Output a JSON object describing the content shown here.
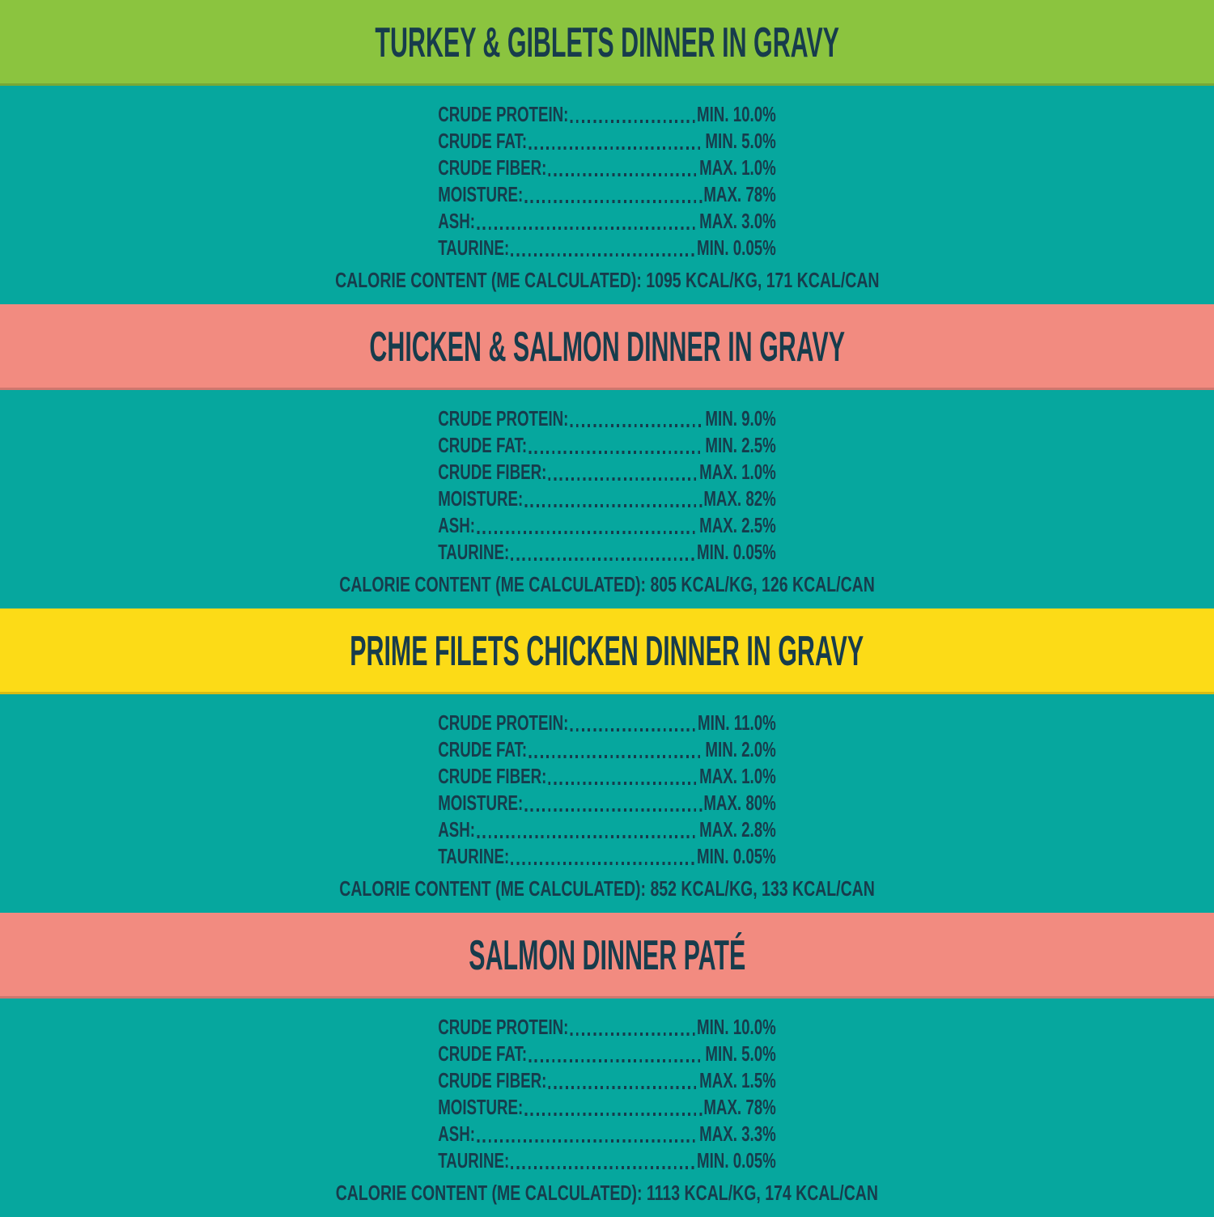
{
  "page": {
    "background_color": "#06a79e",
    "text_color": "#173c4c"
  },
  "sections": [
    {
      "title": "TURKEY & GIBLETS DINNER IN GRAVY",
      "band_color": "#8bc43f",
      "rows": [
        {
          "label": "CRUDE PROTEIN:",
          "value": "MIN. 10.0%"
        },
        {
          "label": "CRUDE FAT:",
          "value": "MIN. 5.0%"
        },
        {
          "label": "CRUDE FIBER:",
          "value": "MAX. 1.0%"
        },
        {
          "label": "MOISTURE:",
          "value": "MAX. 78%"
        },
        {
          "label": "ASH:",
          "value": "MAX. 3.0%"
        },
        {
          "label": "TAURINE:",
          "value": "MIN. 0.05%"
        }
      ],
      "calorie_line": "CALORIE CONTENT (ME CALCULATED): 1095 KCAL/KG, 171 KCAL/CAN"
    },
    {
      "title": "CHICKEN & SALMON DINNER IN GRAVY",
      "band_color": "#f28b80",
      "rows": [
        {
          "label": "CRUDE PROTEIN:",
          "value": "MIN. 9.0%"
        },
        {
          "label": "CRUDE FAT:",
          "value": "MIN. 2.5%"
        },
        {
          "label": "CRUDE FIBER:",
          "value": "MAX. 1.0%"
        },
        {
          "label": "MOISTURE:",
          "value": "MAX. 82%"
        },
        {
          "label": "ASH:",
          "value": "MAX. 2.5%"
        },
        {
          "label": "TAURINE:",
          "value": "MIN. 0.05%"
        }
      ],
      "calorie_line": "CALORIE CONTENT (ME CALCULATED): 805 KCAL/KG, 126 KCAL/CAN"
    },
    {
      "title": "PRIME FILETS CHICKEN DINNER IN GRAVY",
      "band_color": "#fcdb17",
      "rows": [
        {
          "label": "CRUDE PROTEIN:",
          "value": "MIN. 11.0%"
        },
        {
          "label": "CRUDE FAT:",
          "value": "MIN. 2.0%"
        },
        {
          "label": "CRUDE FIBER:",
          "value": "MAX. 1.0%"
        },
        {
          "label": "MOISTURE:",
          "value": "MAX. 80%"
        },
        {
          "label": "ASH:",
          "value": "MAX. 2.8%"
        },
        {
          "label": "TAURINE:",
          "value": "MIN. 0.05%"
        }
      ],
      "calorie_line": "CALORIE CONTENT (ME CALCULATED): 852 KCAL/KG, 133 KCAL/CAN"
    },
    {
      "title": "SALMON DINNER PATÉ",
      "band_color": "#f28b80",
      "rows": [
        {
          "label": "CRUDE PROTEIN:",
          "value": "MIN. 10.0%"
        },
        {
          "label": "CRUDE FAT:",
          "value": "MIN. 5.0%"
        },
        {
          "label": "CRUDE FIBER:",
          "value": "MAX. 1.5%"
        },
        {
          "label": "MOISTURE:",
          "value": "MAX. 78%"
        },
        {
          "label": "ASH:",
          "value": "MAX. 3.3%"
        },
        {
          "label": "TAURINE:",
          "value": "MIN. 0.05%"
        }
      ],
      "calorie_line": "CALORIE CONTENT (ME CALCULATED): 1113 KCAL/KG, 174 KCAL/CAN"
    }
  ]
}
